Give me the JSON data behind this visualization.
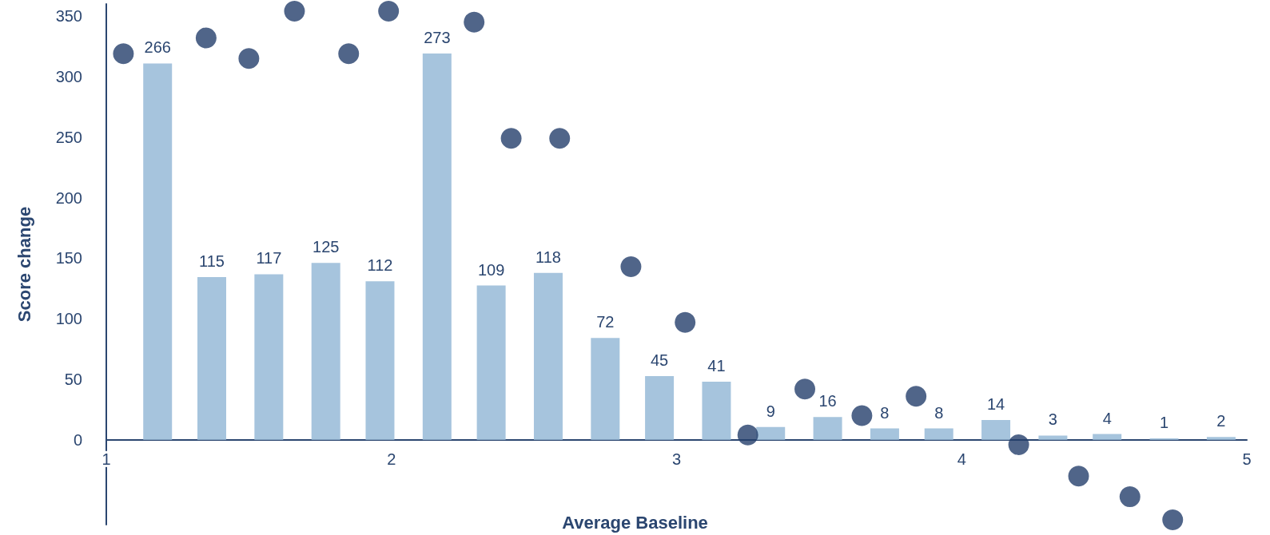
{
  "chart_data": {
    "type": "bar",
    "xlabel": "Average Baseline",
    "ylabel": "Score change",
    "xlim": [
      1,
      5
    ],
    "xticks": [
      1,
      2,
      3,
      4,
      5
    ],
    "ylim": [
      -70,
      360
    ],
    "yticks": [
      0,
      50,
      100,
      150,
      200,
      250,
      300,
      350
    ],
    "y2lim": [
      -60,
      308
    ],
    "marker": "circle",
    "series": [
      {
        "axis": "y2",
        "color": "#a6c4dd",
        "value_labels": [
          "266",
          "115",
          "117",
          "125",
          "112",
          "273",
          "109",
          "118",
          "72",
          "45",
          "41",
          "9",
          "16",
          "8",
          "8",
          "14",
          "3",
          "4",
          "1",
          "2"
        ],
        "x": [
          1.18,
          1.37,
          1.57,
          1.77,
          1.96,
          2.16,
          2.35,
          2.55,
          2.75,
          2.94,
          3.14,
          3.33,
          3.53,
          3.73,
          3.92,
          4.12,
          4.32,
          4.51,
          4.71,
          4.91
        ],
        "values": [
          266,
          115,
          117,
          125,
          112,
          273,
          109,
          118,
          72,
          45,
          41,
          9,
          16,
          8,
          8,
          14,
          3,
          4,
          1,
          2
        ]
      },
      {
        "type": "scatter",
        "color": "#243f6b",
        "x": [
          1.06,
          1.35,
          1.5,
          1.66,
          1.85,
          1.99,
          2.29,
          2.42,
          2.59,
          2.84,
          3.03,
          3.25,
          3.45,
          3.65,
          3.84,
          4.2,
          4.41,
          4.59,
          4.74
        ],
        "values": [
          319,
          332,
          315,
          354,
          319,
          354,
          345,
          249,
          249,
          143,
          97,
          4,
          42,
          20,
          36,
          -4,
          -30,
          -47,
          -66
        ]
      }
    ]
  }
}
